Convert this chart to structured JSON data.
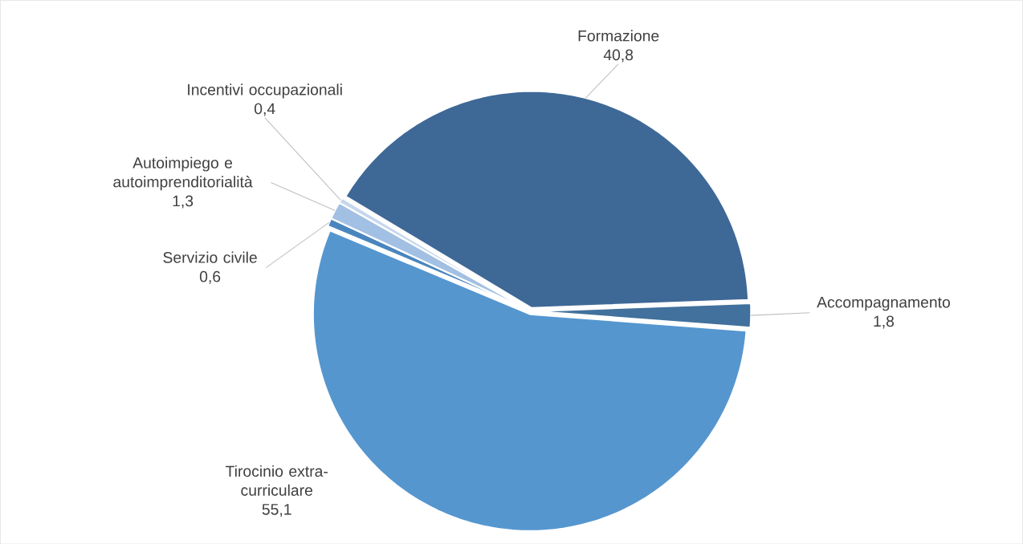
{
  "chart_data": {
    "type": "pie",
    "categories": [
      "Formazione",
      "Accompagnamento",
      "Tirocinio extra-curriculare",
      "Servizio civile",
      "Autoimpiego e autoimprenditorialità",
      "Incentivi occupazionali"
    ],
    "values": [
      40.8,
      1.8,
      55.1,
      0.6,
      1.3,
      0.4
    ],
    "value_labels": [
      "40,8",
      "1,8",
      "55,1",
      "0,6",
      "1,3",
      "0,4"
    ],
    "colors": [
      "#3e6896",
      "#41719c",
      "#5596cf",
      "#4a86be",
      "#a2c0e3",
      "#c5d6ee"
    ]
  }
}
